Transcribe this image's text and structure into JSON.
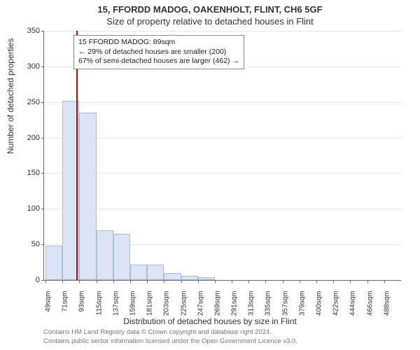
{
  "title": "15, FFORDD MADOG, OAKENHOLT, FLINT, CH6 5GF",
  "subtitle": "Size of property relative to detached houses in Flint",
  "y_axis_label": "Number of detached properties",
  "x_axis_label": "Distribution of detached houses by size in Flint",
  "footer_line1": "Contains HM Land Registry data © Crown copyright and database right 2024.",
  "footer_line2": "Contains public sector information licensed under the Open Government Licence v3.0.",
  "chart": {
    "type": "histogram",
    "ylim": [
      0,
      350
    ],
    "ytick_step": 50,
    "yticks": [
      0,
      50,
      100,
      150,
      200,
      250,
      300,
      350
    ],
    "categories": [
      "49sqm",
      "71sqm",
      "93sqm",
      "115sqm",
      "137sqm",
      "159sqm",
      "181sqm",
      "203sqm",
      "225sqm",
      "247sqm",
      "269sqm",
      "291sqm",
      "313sqm",
      "335sqm",
      "357sqm",
      "379sqm",
      "400sqm",
      "422sqm",
      "444sqm",
      "466sqm",
      "488sqm"
    ],
    "values": [
      48,
      252,
      235,
      70,
      65,
      22,
      22,
      10,
      6,
      4,
      0,
      0,
      0,
      0,
      0,
      0,
      0,
      0,
      0,
      0,
      0
    ],
    "bar_fill": "#dbe4f3",
    "bar_border": "#a8bdd9",
    "grid_color": "#e6e6e6",
    "axis_color": "#666666",
    "background_color": "#ffffff",
    "tick_font_size": 11,
    "label_font_size": 12,
    "title_font_size": 13,
    "marker": {
      "color": "#cc0000",
      "category_index_between": [
        1,
        2
      ],
      "fraction": 0.82
    }
  },
  "annotation": {
    "line1": "15 FFORDD MADOG: 89sqm",
    "line2": "← 29% of detached houses are smaller (200)",
    "line3": "67% of semi-detached houses are larger (462) →",
    "border_color": "#888888",
    "background": "#ffffff",
    "font_size": 10.5
  }
}
